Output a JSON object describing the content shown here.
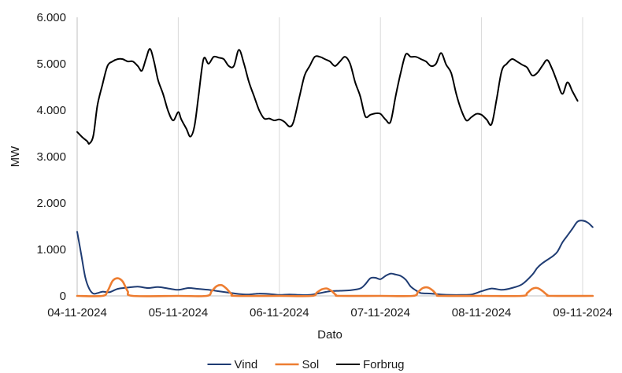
{
  "chart_data": {
    "type": "line",
    "xlabel": "Dato",
    "ylabel": "MW",
    "ylim": [
      0,
      6000
    ],
    "y_ticks": [
      0,
      1000,
      2000,
      3000,
      4000,
      5000,
      6000
    ],
    "y_tick_labels": [
      "0",
      "1.000",
      "2.000",
      "3.000",
      "4.000",
      "5.000",
      "6.000"
    ],
    "xlim": [
      0,
      5
    ],
    "x_ticks": [
      0,
      1,
      2,
      3,
      4,
      5
    ],
    "x_tick_labels": [
      "04-11-2024",
      "05-11-2024",
      "06-11-2024",
      "07-11-2024",
      "08-11-2024",
      "09-11-2024"
    ],
    "x_unit": "days from 04-11-2024",
    "grid": "vertical",
    "legend_position": "bottom",
    "series": [
      {
        "name": "Vind",
        "color": "#1f3c73",
        "points": [
          [
            0.0,
            1380
          ],
          [
            0.04,
            900
          ],
          [
            0.08,
            400
          ],
          [
            0.12,
            150
          ],
          [
            0.16,
            50
          ],
          [
            0.2,
            60
          ],
          [
            0.25,
            90
          ],
          [
            0.32,
            80
          ],
          [
            0.4,
            150
          ],
          [
            0.5,
            180
          ],
          [
            0.6,
            200
          ],
          [
            0.7,
            170
          ],
          [
            0.8,
            190
          ],
          [
            0.9,
            160
          ],
          [
            1.0,
            130
          ],
          [
            1.1,
            170
          ],
          [
            1.2,
            150
          ],
          [
            1.3,
            130
          ],
          [
            1.4,
            100
          ],
          [
            1.5,
            70
          ],
          [
            1.6,
            40
          ],
          [
            1.7,
            30
          ],
          [
            1.8,
            50
          ],
          [
            1.9,
            40
          ],
          [
            2.0,
            20
          ],
          [
            2.1,
            30
          ],
          [
            2.2,
            20
          ],
          [
            2.3,
            20
          ],
          [
            2.4,
            60
          ],
          [
            2.5,
            100
          ],
          [
            2.6,
            110
          ],
          [
            2.7,
            120
          ],
          [
            2.8,
            160
          ],
          [
            2.85,
            250
          ],
          [
            2.9,
            380
          ],
          [
            2.95,
            390
          ],
          [
            3.0,
            360
          ],
          [
            3.05,
            430
          ],
          [
            3.1,
            480
          ],
          [
            3.15,
            460
          ],
          [
            3.2,
            430
          ],
          [
            3.25,
            350
          ],
          [
            3.3,
            200
          ],
          [
            3.35,
            120
          ],
          [
            3.4,
            60
          ],
          [
            3.5,
            50
          ],
          [
            3.6,
            30
          ],
          [
            3.7,
            20
          ],
          [
            3.8,
            20
          ],
          [
            3.9,
            30
          ],
          [
            4.0,
            100
          ],
          [
            4.1,
            160
          ],
          [
            4.2,
            130
          ],
          [
            4.3,
            170
          ],
          [
            4.4,
            250
          ],
          [
            4.5,
            450
          ],
          [
            4.55,
            600
          ],
          [
            4.6,
            700
          ],
          [
            4.7,
            850
          ],
          [
            4.75,
            950
          ],
          [
            4.8,
            1150
          ],
          [
            4.85,
            1300
          ],
          [
            4.9,
            1450
          ],
          [
            4.95,
            1600
          ],
          [
            5.0,
            1620
          ],
          [
            5.05,
            1580
          ],
          [
            5.1,
            1480
          ]
        ]
      },
      {
        "name": "Sol",
        "color": "#ed7d31",
        "points": [
          [
            0.0,
            0
          ],
          [
            0.25,
            0
          ],
          [
            0.3,
            100
          ],
          [
            0.35,
            320
          ],
          [
            0.4,
            380
          ],
          [
            0.45,
            310
          ],
          [
            0.5,
            100
          ],
          [
            0.55,
            0
          ],
          [
            1.0,
            0
          ],
          [
            1.28,
            0
          ],
          [
            1.33,
            100
          ],
          [
            1.38,
            210
          ],
          [
            1.43,
            230
          ],
          [
            1.48,
            150
          ],
          [
            1.53,
            30
          ],
          [
            1.57,
            0
          ],
          [
            2.0,
            0
          ],
          [
            2.32,
            0
          ],
          [
            2.37,
            70
          ],
          [
            2.42,
            140
          ],
          [
            2.47,
            160
          ],
          [
            2.52,
            100
          ],
          [
            2.56,
            20
          ],
          [
            2.6,
            0
          ],
          [
            3.0,
            0
          ],
          [
            3.32,
            0
          ],
          [
            3.37,
            80
          ],
          [
            3.42,
            170
          ],
          [
            3.47,
            180
          ],
          [
            3.52,
            110
          ],
          [
            3.56,
            20
          ],
          [
            3.6,
            0
          ],
          [
            4.0,
            0
          ],
          [
            4.4,
            0
          ],
          [
            4.45,
            60
          ],
          [
            4.5,
            150
          ],
          [
            4.55,
            170
          ],
          [
            4.6,
            110
          ],
          [
            4.65,
            20
          ],
          [
            4.69,
            0
          ],
          [
            5.1,
            0
          ]
        ]
      },
      {
        "name": "Forbrug",
        "color": "#000000",
        "points": [
          [
            0.0,
            3530
          ],
          [
            0.05,
            3420
          ],
          [
            0.1,
            3330
          ],
          [
            0.12,
            3280
          ],
          [
            0.16,
            3450
          ],
          [
            0.2,
            4100
          ],
          [
            0.25,
            4550
          ],
          [
            0.3,
            4950
          ],
          [
            0.35,
            5050
          ],
          [
            0.4,
            5100
          ],
          [
            0.45,
            5100
          ],
          [
            0.5,
            5050
          ],
          [
            0.55,
            5050
          ],
          [
            0.6,
            4950
          ],
          [
            0.64,
            4850
          ],
          [
            0.68,
            5100
          ],
          [
            0.72,
            5320
          ],
          [
            0.76,
            5050
          ],
          [
            0.8,
            4650
          ],
          [
            0.85,
            4350
          ],
          [
            0.9,
            3980
          ],
          [
            0.95,
            3780
          ],
          [
            1.0,
            3960
          ],
          [
            1.03,
            3800
          ],
          [
            1.08,
            3600
          ],
          [
            1.12,
            3430
          ],
          [
            1.16,
            3650
          ],
          [
            1.2,
            4300
          ],
          [
            1.25,
            5100
          ],
          [
            1.3,
            5000
          ],
          [
            1.35,
            5150
          ],
          [
            1.4,
            5130
          ],
          [
            1.45,
            5100
          ],
          [
            1.5,
            4950
          ],
          [
            1.55,
            4950
          ],
          [
            1.6,
            5300
          ],
          [
            1.65,
            5000
          ],
          [
            1.7,
            4600
          ],
          [
            1.75,
            4300
          ],
          [
            1.8,
            4000
          ],
          [
            1.85,
            3820
          ],
          [
            1.9,
            3820
          ],
          [
            1.95,
            3780
          ],
          [
            2.0,
            3800
          ],
          [
            2.05,
            3750
          ],
          [
            2.1,
            3650
          ],
          [
            2.14,
            3750
          ],
          [
            2.2,
            4300
          ],
          [
            2.25,
            4750
          ],
          [
            2.3,
            4950
          ],
          [
            2.35,
            5150
          ],
          [
            2.4,
            5150
          ],
          [
            2.45,
            5100
          ],
          [
            2.5,
            5050
          ],
          [
            2.55,
            4950
          ],
          [
            2.6,
            5050
          ],
          [
            2.65,
            5150
          ],
          [
            2.7,
            5000
          ],
          [
            2.75,
            4600
          ],
          [
            2.8,
            4300
          ],
          [
            2.85,
            3870
          ],
          [
            2.9,
            3900
          ],
          [
            2.95,
            3930
          ],
          [
            3.0,
            3920
          ],
          [
            3.05,
            3800
          ],
          [
            3.1,
            3750
          ],
          [
            3.15,
            4300
          ],
          [
            3.2,
            4800
          ],
          [
            3.25,
            5200
          ],
          [
            3.3,
            5150
          ],
          [
            3.35,
            5150
          ],
          [
            3.4,
            5100
          ],
          [
            3.45,
            5050
          ],
          [
            3.5,
            4950
          ],
          [
            3.55,
            5000
          ],
          [
            3.6,
            5230
          ],
          [
            3.65,
            4980
          ],
          [
            3.7,
            4800
          ],
          [
            3.75,
            4350
          ],
          [
            3.8,
            4000
          ],
          [
            3.85,
            3780
          ],
          [
            3.9,
            3850
          ],
          [
            3.95,
            3920
          ],
          [
            4.0,
            3900
          ],
          [
            4.05,
            3800
          ],
          [
            4.1,
            3700
          ],
          [
            4.15,
            4250
          ],
          [
            4.2,
            4850
          ],
          [
            4.25,
            5000
          ],
          [
            4.3,
            5100
          ],
          [
            4.35,
            5050
          ],
          [
            4.4,
            4980
          ],
          [
            4.45,
            4920
          ],
          [
            4.5,
            4750
          ],
          [
            4.55,
            4800
          ],
          [
            4.6,
            4950
          ],
          [
            4.65,
            5080
          ],
          [
            4.7,
            4880
          ],
          [
            4.75,
            4600
          ],
          [
            4.8,
            4350
          ],
          [
            4.85,
            4600
          ],
          [
            4.9,
            4400
          ],
          [
            4.95,
            4200
          ]
        ]
      }
    ]
  }
}
